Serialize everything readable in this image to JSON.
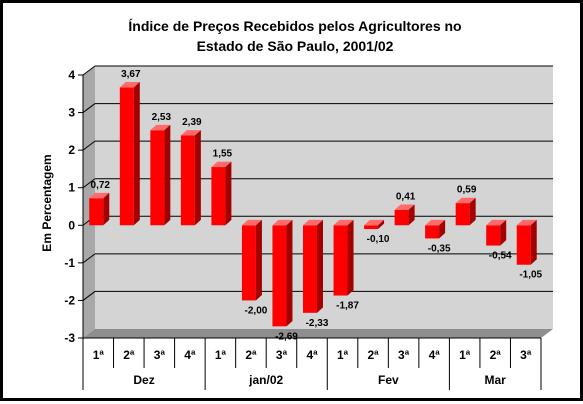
{
  "chart_data": {
    "type": "bar",
    "title": [
      "Índice de Preços Recebidos pelos Agricultores no",
      "Estado de São Paulo, 2001/02"
    ],
    "ylabel": "Em Percentagem",
    "xlabel": "",
    "ylim": [
      -3,
      4
    ],
    "yticks": [
      "-3",
      "-2",
      "-1",
      "0",
      "1",
      "2",
      "3",
      "4"
    ],
    "grid": true,
    "categories": [
      "1ª",
      "2ª",
      "3ª",
      "4ª",
      "1ª",
      "2ª",
      "3ª",
      "4ª",
      "1ª",
      "2ª",
      "3ª",
      "4ª",
      "1ª",
      "2ª",
      "3ª"
    ],
    "values": [
      0.72,
      3.67,
      2.53,
      2.39,
      1.55,
      -2.0,
      -2.69,
      -2.33,
      -1.87,
      -0.1,
      0.41,
      -0.35,
      0.59,
      -0.54,
      -1.05
    ],
    "value_labels": [
      "0,72",
      "3,67",
      "2,53",
      "2,39",
      "1,55",
      "-2,00",
      "-2,69",
      "-2,33",
      "-1,87",
      "-0,10",
      "0,41",
      "-0,35",
      "0,59",
      "-0,54",
      "-1,05"
    ],
    "groups": [
      {
        "label": "Dez",
        "count": 4
      },
      {
        "label": "jan/02",
        "count": 4
      },
      {
        "label": "Fev",
        "count": 4
      },
      {
        "label": "Mar",
        "count": 3
      }
    ],
    "colors": {
      "bar_front": "#ff0000",
      "bar_top": "#ff6a6a",
      "bar_side": "#a30000",
      "back_wall": "#d4d4d4",
      "side_wall": "#a8a8a8",
      "floor": "#8e8e8e",
      "gridline": "#000000"
    }
  }
}
